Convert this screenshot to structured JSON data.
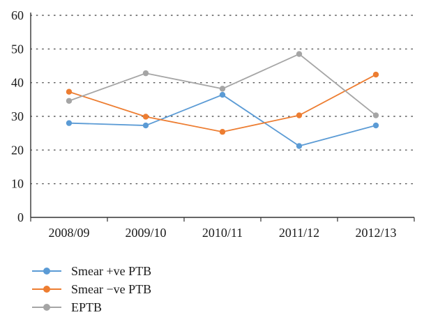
{
  "chart_data": {
    "type": "line",
    "categories": [
      "2008/09",
      "2009/10",
      "2010/11",
      "2011/12",
      "2012/13"
    ],
    "series": [
      {
        "name": "Smear +ve PTB",
        "color": "#5b9bd5",
        "values": [
          28,
          27.3,
          36.4,
          21.2,
          27.3
        ]
      },
      {
        "name": "Smear −ve PTB",
        "color": "#ed7d31",
        "values": [
          37.3,
          29.9,
          25.4,
          30.3,
          42.4
        ]
      },
      {
        "name": "EPTB",
        "color": "#a5a5a5",
        "values": [
          34.6,
          42.8,
          38.2,
          48.5,
          30.3
        ]
      }
    ],
    "ylim": [
      0,
      60
    ],
    "yticks": [
      0,
      10,
      20,
      30,
      40,
      50,
      60
    ],
    "grid": "horizontal dotted",
    "legend_position": "bottom-left",
    "title": "",
    "xlabel": "",
    "ylabel": ""
  }
}
